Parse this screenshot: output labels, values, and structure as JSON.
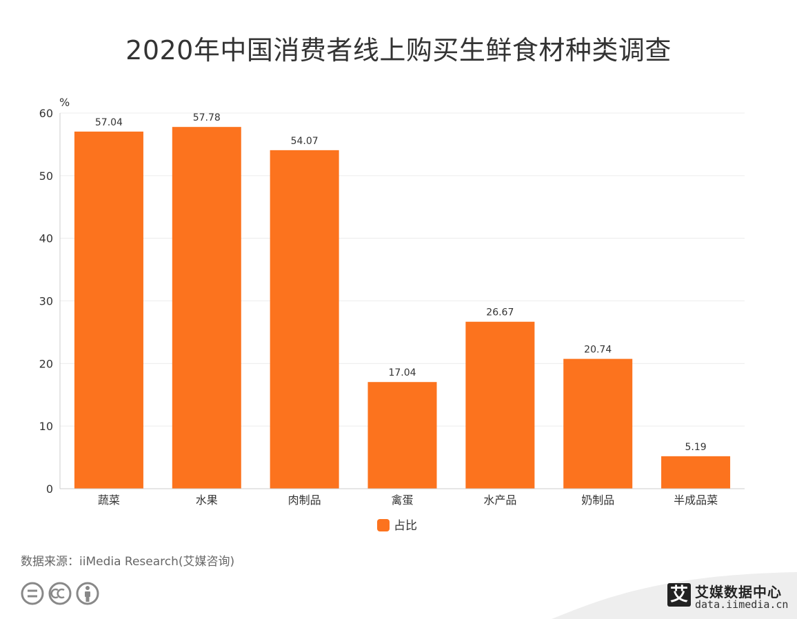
{
  "chart_data": {
    "type": "bar",
    "title": "2020年中国消费者线上购买生鲜食材种类调查",
    "categories": [
      "蔬菜",
      "水果",
      "肉制品",
      "禽蛋",
      "水产品",
      "奶制品",
      "半成品菜"
    ],
    "series": [
      {
        "name": "占比",
        "values": [
          57.04,
          57.78,
          54.07,
          17.04,
          26.67,
          20.74,
          5.19
        ]
      }
    ],
    "ylabel": "%",
    "ylim": [
      0,
      60
    ],
    "yticks": [
      "0",
      "10",
      "20",
      "30",
      "40",
      "50",
      "60"
    ],
    "grid": true,
    "legend": "bottom",
    "colors": {
      "bar": "#fc731e",
      "grid": "#ececec",
      "axis": "#cccccc",
      "text": "#333333"
    }
  },
  "source": "数据来源：iiMedia Research(艾媒咨询)",
  "logo": {
    "mark": "艾",
    "name": "艾媒数据中心",
    "url": "data.iimedia.cn"
  },
  "cc_icons": [
    "equals-icon",
    "cc-icon",
    "person-icon"
  ]
}
